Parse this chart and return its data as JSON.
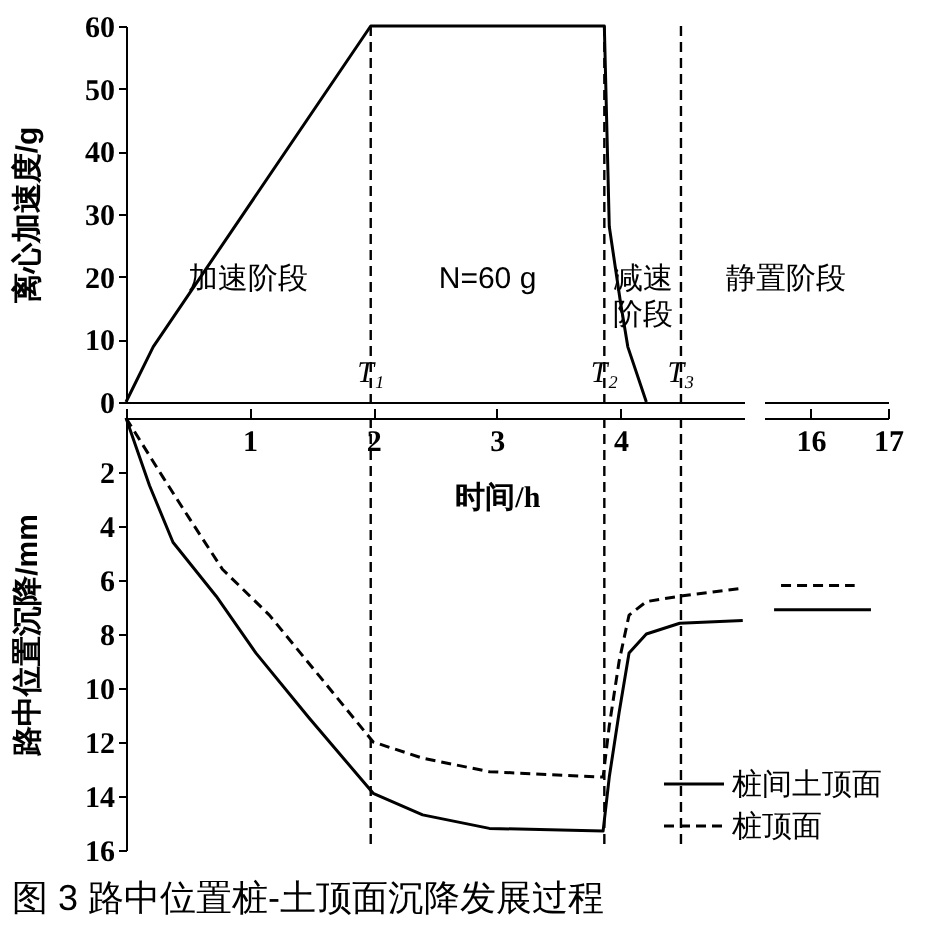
{
  "chart_data": [
    {
      "type": "line",
      "ylabel": "离心加速度/g",
      "xlim": [
        0,
        5.0
      ],
      "ylim": [
        0,
        60
      ],
      "yticks": [
        0,
        10,
        20,
        30,
        40,
        50,
        60
      ],
      "tick_labels": "y",
      "grid": false,
      "series": [
        {
          "color": "#000000",
          "line_style": "solid",
          "x": [
            0,
            0.22,
            1.98,
            3.87,
            3.91,
            4.0,
            4.06,
            4.21
          ],
          "values": [
            0,
            8.8,
            60,
            60,
            28,
            16,
            8.8,
            0
          ]
        }
      ],
      "ref_lines": [
        {
          "axis": "x",
          "value": 1.98,
          "label": "T₁",
          "line_style": "dashed",
          "color": "#000000"
        },
        {
          "axis": "x",
          "value": 3.87,
          "label": "T₂",
          "line_style": "dashed",
          "color": "#000000"
        },
        {
          "axis": "x",
          "value": 4.49,
          "label": "T₃",
          "line_style": "dashed",
          "color": "#000000"
        }
      ],
      "annotations": [
        "加速阶段",
        "N=60 g",
        "减速阶段"
      ]
    },
    {
      "type": "line",
      "xlim": [
        15.4,
        17
      ],
      "ylim": [
        0,
        60
      ],
      "tick_labels": false,
      "annotations": [
        "静置阶段"
      ]
    },
    {
      "type": "line",
      "title": "图 3 路中位置桩-土顶面沉降发展过程",
      "xlabel": "时间/h",
      "ylabel": "路中位置沉降/mm",
      "xlim": [
        0,
        5.0
      ],
      "xticks": [
        {
          "value": 0,
          "label": null
        },
        1,
        2,
        3,
        4
      ],
      "ylim": [
        16,
        0
      ],
      "yticks": [
        2,
        4,
        6,
        8,
        10,
        12,
        14,
        16
      ],
      "grid": false,
      "legend": "bottom right",
      "series": [
        {
          "name": "桩间土顶面",
          "color": "#000000",
          "line_style": "solid",
          "x": [
            0,
            0.19,
            0.38,
            0.73,
            1.05,
            1.48,
            2.0,
            2.4,
            2.94,
            3.86,
            3.91,
            3.99,
            4.07,
            4.21,
            4.48,
            4.99
          ],
          "values": [
            0,
            2.5,
            4.6,
            6.6,
            8.7,
            11.1,
            13.9,
            14.7,
            15.2,
            15.3,
            13.3,
            10.9,
            8.7,
            8.0,
            7.6,
            7.5
          ]
        },
        {
          "name": "桩顶面",
          "color": "#000000",
          "line_style": "dashed",
          "x": [
            0,
            0.3,
            0.51,
            0.78,
            1.16,
            1.59,
            2.0,
            2.4,
            2.94,
            3.86,
            3.91,
            3.99,
            4.07,
            4.21,
            4.48,
            4.99
          ],
          "values": [
            0,
            2.2,
            3.7,
            5.6,
            7.3,
            9.7,
            12.0,
            12.6,
            13.1,
            13.3,
            11.4,
            9.0,
            7.3,
            6.8,
            6.6,
            6.3
          ]
        }
      ],
      "ref_lines": [
        {
          "axis": "x",
          "value": 1.98,
          "line_style": "dashed",
          "color": "#000000"
        },
        {
          "axis": "x",
          "value": 3.87,
          "line_style": "dashed",
          "color": "#000000"
        },
        {
          "axis": "x",
          "value": 4.49,
          "line_style": "dashed",
          "color": "#000000"
        }
      ]
    },
    {
      "type": "line",
      "xlim": [
        15.4,
        17
      ],
      "xticks": [
        16,
        17
      ],
      "ylim": [
        16,
        0
      ],
      "tick_labels": "x",
      "grid": false,
      "series": [
        {
          "color": "#000000",
          "line_style": "solid",
          "x": [
            15.53,
            16.78
          ],
          "values": [
            7.1,
            7.1
          ]
        },
        {
          "color": "#000000",
          "line_style": "dashed",
          "x": [
            15.62,
            16.57
          ],
          "values": [
            6.2,
            6.2
          ]
        }
      ]
    }
  ]
}
